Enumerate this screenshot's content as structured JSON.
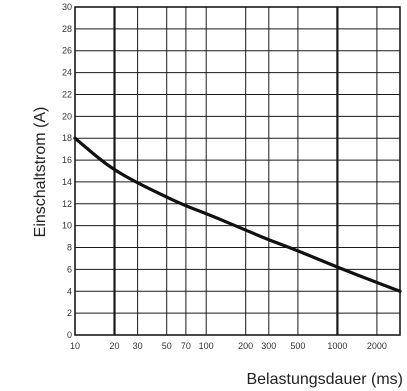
{
  "chart_data": {
    "type": "line",
    "xlabel": "Belastungsdauer (ms)",
    "ylabel": "Einschaltstrom (A)",
    "x_scale": "log",
    "xlim": [
      10,
      3000
    ],
    "ylim": [
      0,
      30
    ],
    "grid": true,
    "x_ticks": [
      {
        "value": 10,
        "label": "10"
      },
      {
        "value": 20,
        "label": "20"
      },
      {
        "value": 30,
        "label": "30"
      },
      {
        "value": 50,
        "label": "50"
      },
      {
        "value": 70,
        "label": "70"
      },
      {
        "value": 100,
        "label": "100"
      },
      {
        "value": 200,
        "label": "200"
      },
      {
        "value": 300,
        "label": "300"
      },
      {
        "value": 500,
        "label": "500"
      },
      {
        "value": 1000,
        "label": "1000"
      },
      {
        "value": 2000,
        "label": "2000"
      }
    ],
    "y_ticks": [
      {
        "value": 0,
        "label": "0"
      },
      {
        "value": 2,
        "label": "2"
      },
      {
        "value": 4,
        "label": "4"
      },
      {
        "value": 6,
        "label": "6"
      },
      {
        "value": 8,
        "label": "8"
      },
      {
        "value": 10,
        "label": "10"
      },
      {
        "value": 12,
        "label": "12"
      },
      {
        "value": 14,
        "label": "14"
      },
      {
        "value": 16,
        "label": "16"
      },
      {
        "value": 18,
        "label": "18"
      },
      {
        "value": 20,
        "label": "20"
      },
      {
        "value": 22,
        "label": "22"
      },
      {
        "value": 24,
        "label": "24"
      },
      {
        "value": 26,
        "label": "26"
      },
      {
        "value": 28,
        "label": "28"
      },
      {
        "value": 30,
        "label": "30"
      }
    ],
    "series": [
      {
        "x": [
          10,
          15,
          20,
          30,
          50,
          70,
          100,
          200,
          300,
          500,
          1000,
          2000,
          3000
        ],
        "y": [
          18,
          16.2,
          15.1,
          13.9,
          12.6,
          11.8,
          11.1,
          9.6,
          8.7,
          7.7,
          6.2,
          4.8,
          4.0
        ]
      }
    ],
    "colors": {
      "curve": "#111111",
      "grid": "#1a1a1a",
      "background": "#ffffff"
    }
  }
}
